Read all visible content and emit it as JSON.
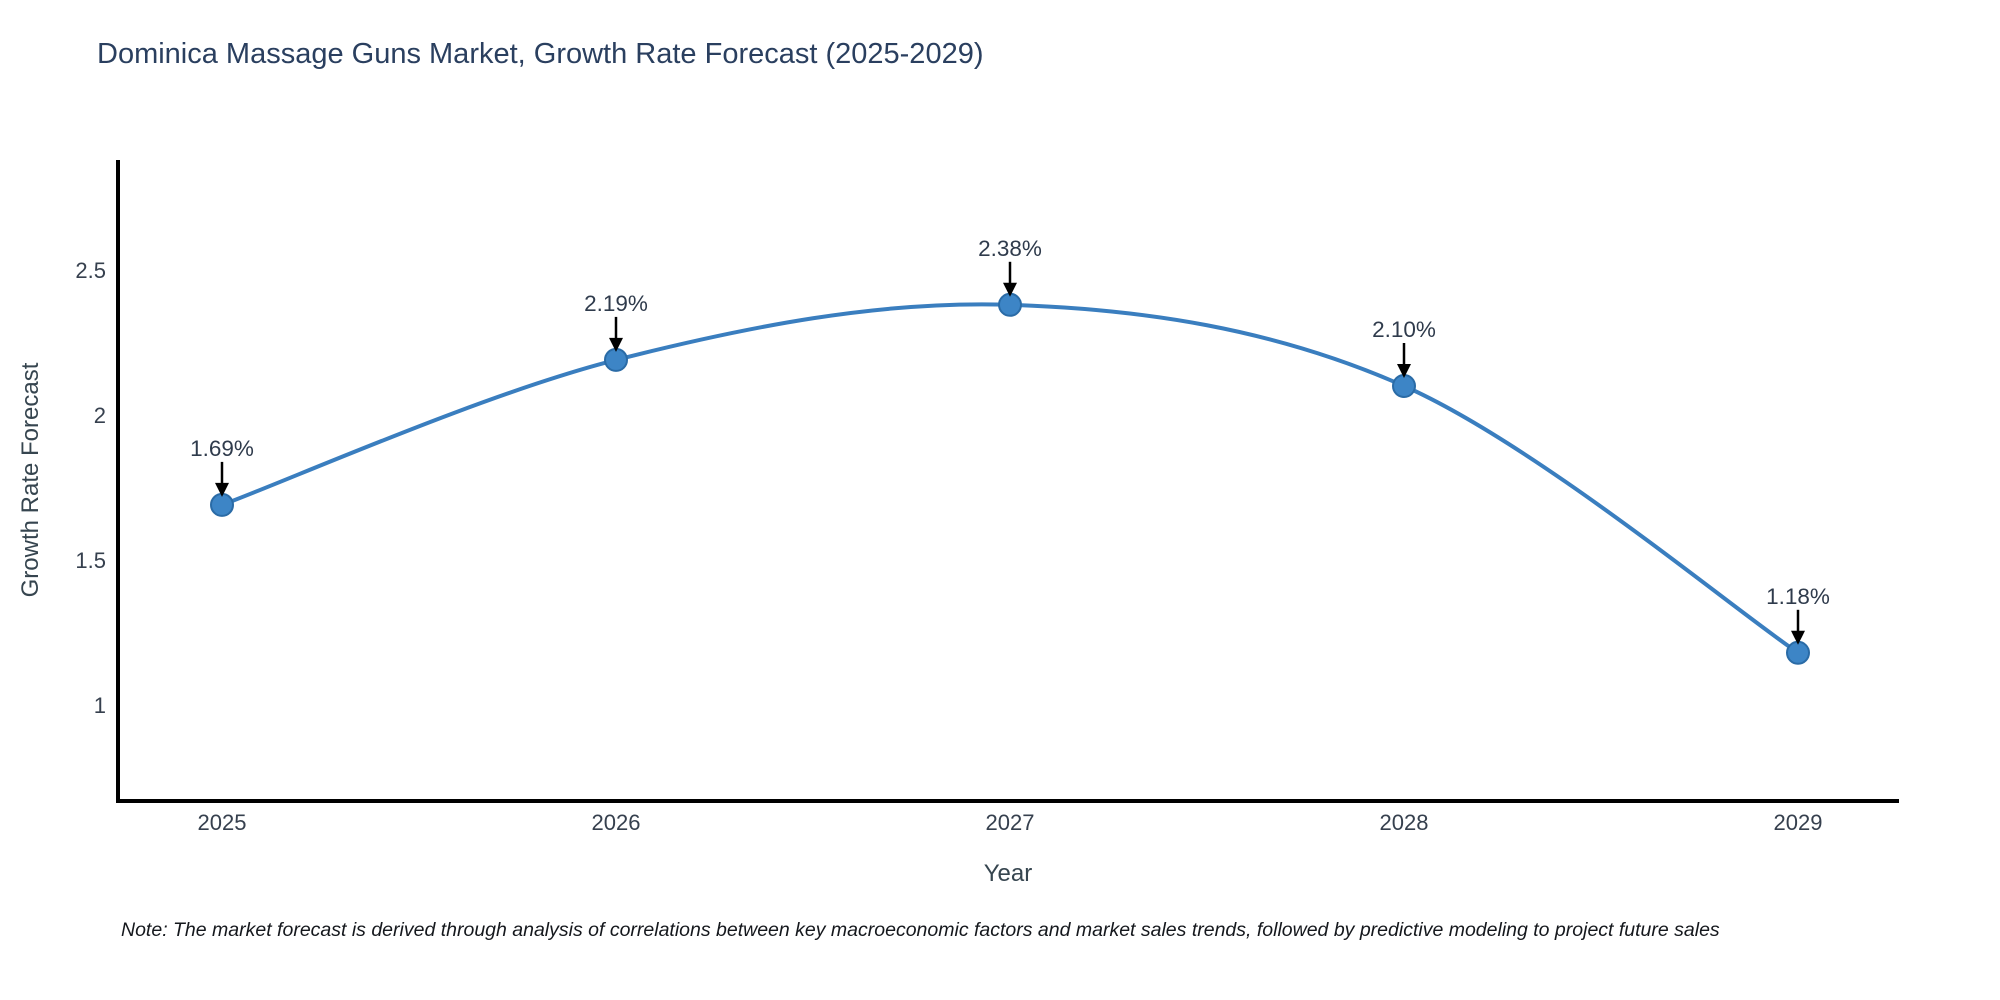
{
  "title": "Dominica Massage Guns Market, Growth Rate Forecast (2025-2029)",
  "note": "Note: The market forecast is derived through analysis of correlations between key macroeconomic factors and market sales trends, followed by predictive modeling to project future sales",
  "chart_data": {
    "type": "line",
    "title": "Dominica Massage Guns Market, Growth Rate Forecast (2025-2029)",
    "xlabel": "Year",
    "ylabel": "Growth Rate Forecast",
    "x": [
      2025,
      2026,
      2027,
      2028,
      2029
    ],
    "series": [
      {
        "name": "Growth Rate Forecast",
        "values": [
          1.69,
          2.19,
          2.38,
          2.1,
          1.18
        ],
        "point_labels": [
          "1.69%",
          "2.19%",
          "2.38%",
          "2.10%",
          "1.18%"
        ]
      }
    ],
    "xtick_labels": [
      "2025",
      "2026",
      "2027",
      "2028",
      "2029"
    ],
    "yticks": [
      1,
      1.5,
      2,
      2.5
    ],
    "ytick_labels": [
      "1",
      "1.5",
      "2",
      "2.5"
    ],
    "ylim": [
      0.67,
      2.88
    ],
    "xlim": [
      2024.74,
      2029.26
    ],
    "grid": false,
    "legend_position": "none",
    "line_shape": "spline",
    "colors": {
      "line": "#3a7ebf",
      "marker_fill": "#3d85c6",
      "marker_edge": "#2a6ba6",
      "annotation_text": "#2f3b4c",
      "annotation_arrow": "#000000",
      "axis_spine": "#000000",
      "tick_text": "#36404e",
      "axis_title_text": "#36454f",
      "title_text": "#2a3f5f"
    }
  }
}
